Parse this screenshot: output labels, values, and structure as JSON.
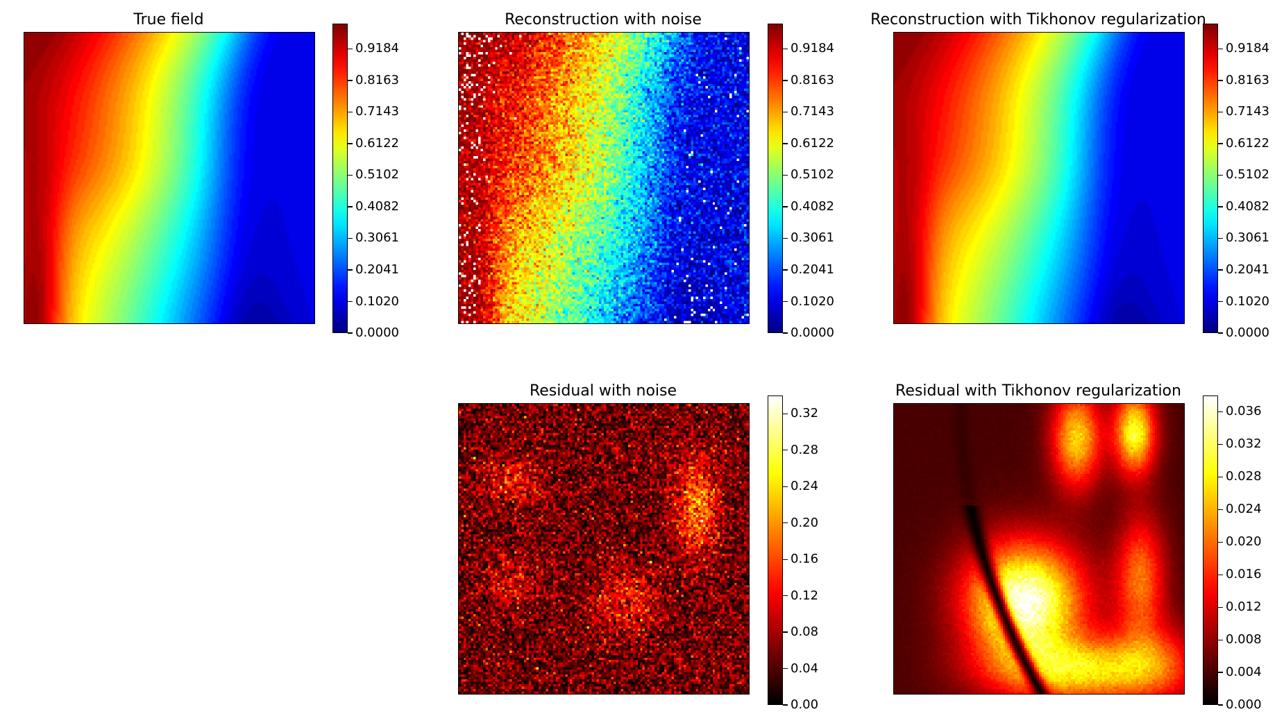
{
  "chart_data": [
    {
      "type": "heatmap",
      "title": "True field",
      "colormap": "jet",
      "field": "smooth",
      "colorbar_ticks": [
        "0.0000",
        "0.1020",
        "0.2041",
        "0.3061",
        "0.4082",
        "0.5102",
        "0.6122",
        "0.7143",
        "0.8163",
        "0.9184"
      ],
      "colorbar_range": [
        0,
        1.0
      ]
    },
    {
      "type": "heatmap",
      "title": "Reconstruction with noise",
      "colormap": "jet",
      "field": "noisy",
      "colorbar_ticks": [
        "0.0000",
        "0.1020",
        "0.2041",
        "0.3061",
        "0.4082",
        "0.5102",
        "0.6122",
        "0.7143",
        "0.8163",
        "0.9184"
      ],
      "colorbar_range": [
        0,
        1.0
      ]
    },
    {
      "type": "heatmap",
      "title": "Reconstruction with Tikhonov regularization",
      "colormap": "jet",
      "field": "smooth",
      "colorbar_ticks": [
        "0.0000",
        "0.1020",
        "0.2041",
        "0.3061",
        "0.4082",
        "0.5102",
        "0.6122",
        "0.7143",
        "0.8163",
        "0.9184"
      ],
      "colorbar_range": [
        0,
        1.0
      ]
    },
    {
      "type": "heatmap",
      "title": "Residual with noise",
      "colormap": "hot",
      "field": "residual-noise",
      "colorbar_ticks": [
        "0.00",
        "0.04",
        "0.08",
        "0.12",
        "0.16",
        "0.20",
        "0.24",
        "0.28",
        "0.32"
      ],
      "colorbar_range": [
        0,
        0.34
      ]
    },
    {
      "type": "heatmap",
      "title": "Residual with Tikhonov regularization",
      "colormap": "hot",
      "field": "residual-tikhonov",
      "colorbar_ticks": [
        "0.000",
        "0.004",
        "0.008",
        "0.012",
        "0.016",
        "0.020",
        "0.024",
        "0.028",
        "0.032",
        "0.036"
      ],
      "colorbar_range": [
        0,
        0.038
      ]
    }
  ]
}
